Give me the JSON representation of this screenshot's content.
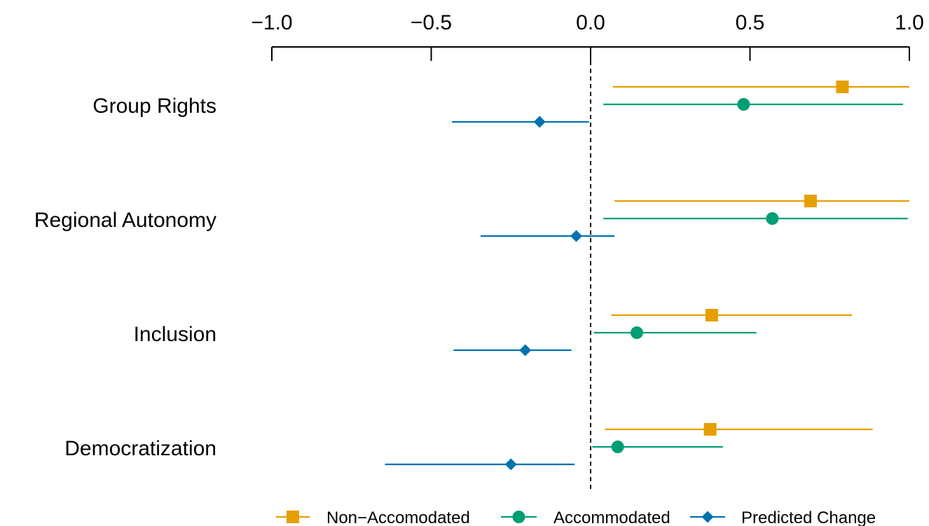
{
  "chart_data": {
    "type": "coefficient-plot",
    "orientation": "horizontal",
    "title": "",
    "xlabel": "",
    "ylabel": "",
    "xlim": [
      -1.0,
      1.0
    ],
    "x_axis_position": "top",
    "x_ticks": [
      -1.0,
      -0.5,
      0.0,
      0.5,
      1.0
    ],
    "x_tick_labels": [
      "−1.0",
      "−0.5",
      "0.0",
      "0.5",
      "1.0"
    ],
    "reference_line": 0.0,
    "grid": false,
    "legend_position": "bottom",
    "categories": [
      "Group Rights",
      "Regional Autonomy",
      "Inclusion",
      "Democratization"
    ],
    "series": [
      {
        "name": "Non−Accomodated",
        "color": "#E69F00",
        "marker": "square",
        "points": [
          {
            "estimate": 0.79,
            "lower": 0.07,
            "upper": 1.0
          },
          {
            "estimate": 0.69,
            "lower": 0.075,
            "upper": 1.0
          },
          {
            "estimate": 0.38,
            "lower": 0.065,
            "upper": 0.82
          },
          {
            "estimate": 0.375,
            "lower": 0.045,
            "upper": 0.885
          }
        ]
      },
      {
        "name": "Accommodated",
        "color": "#009E73",
        "marker": "circle",
        "points": [
          {
            "estimate": 0.48,
            "lower": 0.04,
            "upper": 0.98
          },
          {
            "estimate": 0.57,
            "lower": 0.04,
            "upper": 0.995
          },
          {
            "estimate": 0.145,
            "lower": 0.01,
            "upper": 0.52
          },
          {
            "estimate": 0.085,
            "lower": 0.005,
            "upper": 0.415
          }
        ]
      },
      {
        "name": "Predicted Change",
        "color": "#0072B2",
        "marker": "diamond",
        "points": [
          {
            "estimate": -0.16,
            "lower": -0.435,
            "upper": -0.005
          },
          {
            "estimate": -0.045,
            "lower": -0.345,
            "upper": 0.075
          },
          {
            "estimate": -0.205,
            "lower": -0.43,
            "upper": -0.06
          },
          {
            "estimate": -0.25,
            "lower": -0.645,
            "upper": -0.05
          }
        ]
      }
    ]
  }
}
